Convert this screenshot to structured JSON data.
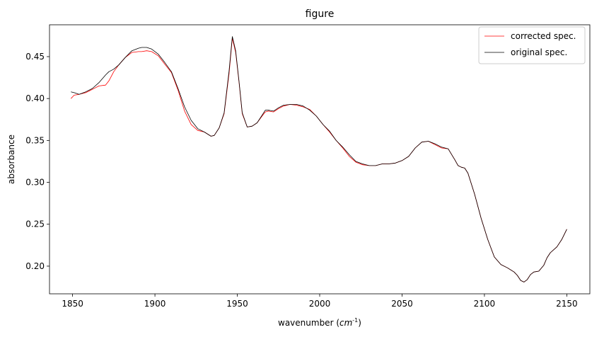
{
  "chart_data": {
    "type": "line",
    "title": "figure",
    "xlabel": "wavenumber (",
    "xlabel_unit": "cm",
    "xlabel_exp": "-1",
    "xlabel_close": ")",
    "ylabel": "absorbance",
    "xlim": [
      1836,
      2164
    ],
    "ylim": [
      0.167,
      0.488
    ],
    "xticks": [
      1850,
      1900,
      1950,
      2000,
      2050,
      2100,
      2150
    ],
    "yticks": [
      0.2,
      0.25,
      0.3,
      0.35,
      0.4,
      0.45
    ],
    "ytick_labels": [
      "0.20",
      "0.25",
      "0.30",
      "0.35",
      "0.40",
      "0.45"
    ],
    "grid": false,
    "legend_position": "top-right",
    "series": [
      {
        "name": "corrected spec.",
        "color": "#ff0000",
        "x": [
          1849,
          1851,
          1854,
          1858,
          1862,
          1866,
          1870,
          1872,
          1875,
          1878,
          1882,
          1886,
          1890,
          1892,
          1895,
          1898,
          1902,
          1906,
          1910,
          1914,
          1918,
          1922,
          1926,
          1930,
          1934,
          1936,
          1939,
          1942,
          1945,
          1947,
          1949,
          1951,
          1953,
          1956,
          1959,
          1962,
          1965,
          1967,
          1969,
          1972,
          1975,
          1978,
          1982,
          1986,
          1990,
          1994,
          1998,
          2002,
          2006,
          2010,
          2014,
          2018,
          2022,
          2026,
          2030,
          2034,
          2038,
          2042,
          2046,
          2050,
          2054,
          2058,
          2062,
          2066,
          2070,
          2074,
          2078,
          2082,
          2084,
          2086,
          2088,
          2090,
          2094,
          2098,
          2102,
          2106,
          2110,
          2114,
          2118,
          2120,
          2122,
          2124,
          2126,
          2128,
          2130,
          2133,
          2136,
          2138,
          2140,
          2144,
          2147,
          2150
        ],
        "y": [
          0.4,
          0.404,
          0.405,
          0.407,
          0.411,
          0.415,
          0.416,
          0.421,
          0.432,
          0.44,
          0.449,
          0.455,
          0.456,
          0.456,
          0.457,
          0.456,
          0.451,
          0.441,
          0.431,
          0.41,
          0.385,
          0.369,
          0.362,
          0.36,
          0.355,
          0.356,
          0.365,
          0.382,
          0.43,
          0.472,
          0.455,
          0.42,
          0.382,
          0.366,
          0.367,
          0.371,
          0.379,
          0.384,
          0.385,
          0.384,
          0.388,
          0.391,
          0.393,
          0.392,
          0.39,
          0.387,
          0.379,
          0.369,
          0.36,
          0.35,
          0.341,
          0.331,
          0.324,
          0.321,
          0.32,
          0.32,
          0.322,
          0.322,
          0.323,
          0.326,
          0.331,
          0.341,
          0.348,
          0.349,
          0.345,
          0.341,
          0.34,
          0.327,
          0.32,
          0.318,
          0.317,
          0.311,
          0.286,
          0.257,
          0.232,
          0.211,
          0.202,
          0.198,
          0.193,
          0.189,
          0.183,
          0.181,
          0.184,
          0.19,
          0.193,
          0.194,
          0.201,
          0.21,
          0.216,
          0.223,
          0.232,
          0.244
        ]
      },
      {
        "name": "original spec.",
        "color": "#000000",
        "x": [
          1849,
          1851,
          1854,
          1858,
          1862,
          1866,
          1870,
          1872,
          1875,
          1878,
          1882,
          1886,
          1890,
          1892,
          1895,
          1898,
          1902,
          1906,
          1910,
          1914,
          1918,
          1922,
          1926,
          1930,
          1934,
          1936,
          1939,
          1942,
          1945,
          1947,
          1949,
          1951,
          1953,
          1956,
          1959,
          1962,
          1965,
          1967,
          1969,
          1972,
          1975,
          1978,
          1982,
          1986,
          1990,
          1994,
          1998,
          2002,
          2006,
          2010,
          2014,
          2018,
          2022,
          2026,
          2030,
          2034,
          2038,
          2042,
          2046,
          2050,
          2054,
          2058,
          2062,
          2066,
          2070,
          2074,
          2078,
          2082,
          2084,
          2086,
          2088,
          2090,
          2094,
          2098,
          2102,
          2106,
          2110,
          2114,
          2118,
          2120,
          2122,
          2124,
          2126,
          2128,
          2130,
          2133,
          2136,
          2138,
          2140,
          2144,
          2147,
          2150
        ],
        "y": [
          0.408,
          0.407,
          0.405,
          0.408,
          0.412,
          0.419,
          0.428,
          0.432,
          0.435,
          0.44,
          0.449,
          0.457,
          0.46,
          0.461,
          0.461,
          0.459,
          0.453,
          0.443,
          0.432,
          0.412,
          0.39,
          0.374,
          0.364,
          0.36,
          0.355,
          0.356,
          0.365,
          0.383,
          0.433,
          0.474,
          0.457,
          0.421,
          0.383,
          0.366,
          0.367,
          0.371,
          0.38,
          0.386,
          0.386,
          0.385,
          0.389,
          0.392,
          0.393,
          0.393,
          0.391,
          0.386,
          0.379,
          0.369,
          0.361,
          0.35,
          0.342,
          0.333,
          0.325,
          0.322,
          0.32,
          0.32,
          0.322,
          0.322,
          0.323,
          0.326,
          0.331,
          0.341,
          0.348,
          0.349,
          0.346,
          0.342,
          0.34,
          0.327,
          0.32,
          0.318,
          0.317,
          0.311,
          0.286,
          0.257,
          0.232,
          0.211,
          0.202,
          0.198,
          0.193,
          0.189,
          0.183,
          0.181,
          0.184,
          0.19,
          0.193,
          0.194,
          0.201,
          0.21,
          0.216,
          0.223,
          0.232,
          0.244
        ]
      }
    ]
  }
}
